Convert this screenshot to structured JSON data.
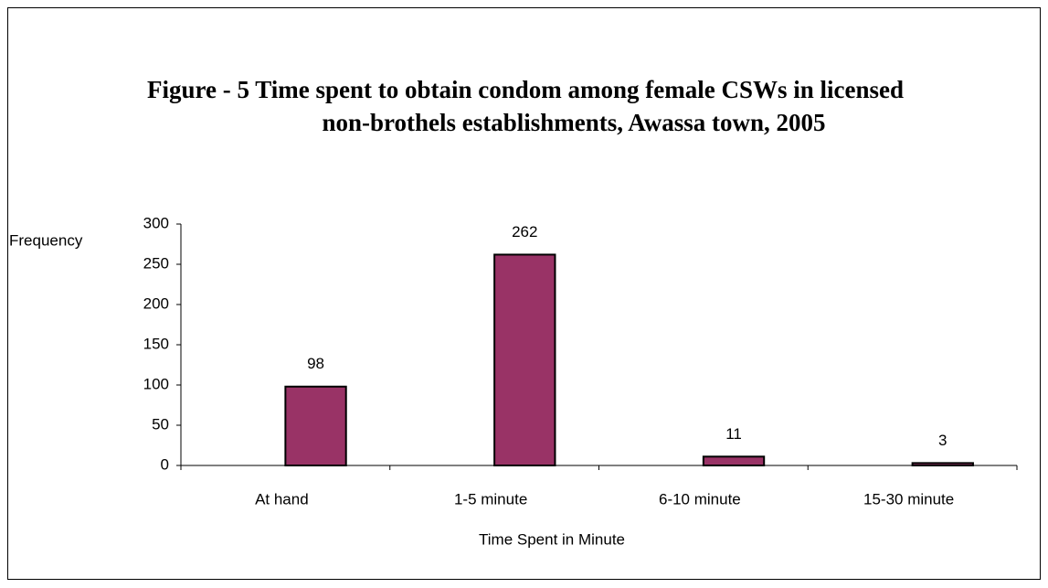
{
  "chart_data": {
    "type": "bar",
    "title": [
      "Figure - 5 Time spent to obtain condom among  female CSWs in licensed",
      "non-brothels establishments,  Awassa town, 2005"
    ],
    "x_label": "Time Spent in Minute",
    "y_label": "Frequency",
    "categories": [
      "At hand",
      "1-5 minute",
      "6-10  minute",
      "15-30 minute"
    ],
    "values": [
      98,
      262,
      11,
      3
    ],
    "color": "#993366",
    "ylim": [
      0,
      300
    ],
    "yticks": [
      0,
      50,
      100,
      150,
      200,
      250,
      300
    ],
    "grid": false
  }
}
